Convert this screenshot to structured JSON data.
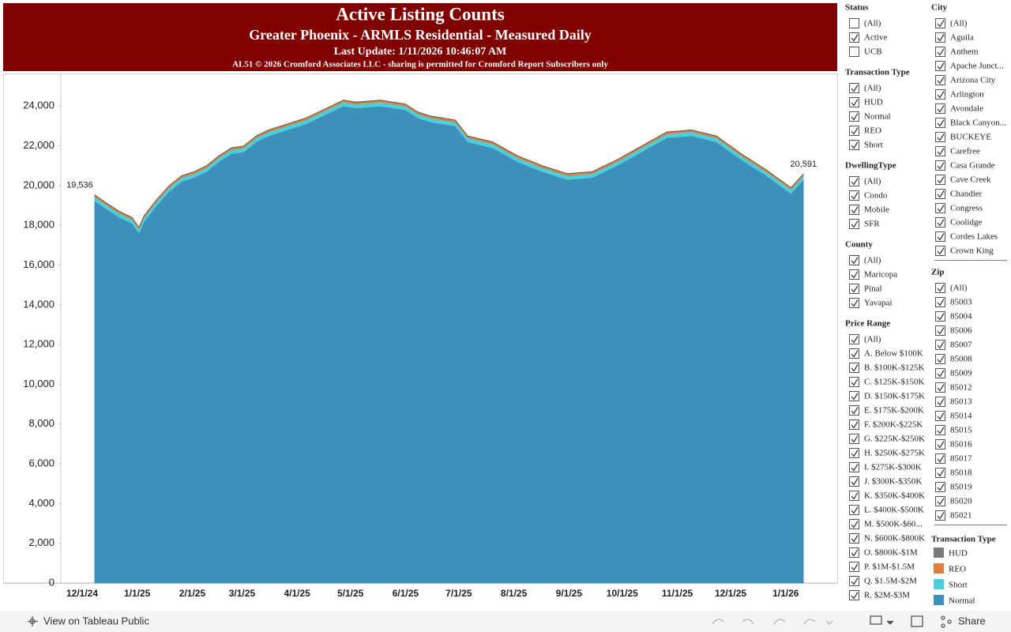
{
  "chart_data": {
    "type": "stacked-area",
    "title": "Active Listing Counts",
    "subtitle": "Greater Phoenix - ARMLS Residential - Measured Daily",
    "update_text": "Last Update: 1/11/2026 10:46:07 AM",
    "footnote": "AL51 © 2026 Cromford Associates LLC - sharing is permitted for Cromford Report Subscribers only",
    "x": [
      "12/8/24",
      "12/15/24",
      "12/22/24",
      "12/29/24",
      "1/2/25",
      "1/5/25",
      "1/12/25",
      "1/19/25",
      "1/26/25",
      "2/2/25",
      "2/9/25",
      "2/16/25",
      "2/23/25",
      "3/2/25",
      "3/9/25",
      "3/16/25",
      "3/23/25",
      "3/30/25",
      "4/6/25",
      "4/13/25",
      "4/20/25",
      "4/27/25",
      "5/4/25",
      "5/18/25",
      "6/1/25",
      "6/8/25",
      "6/15/25",
      "6/29/25",
      "7/6/25",
      "7/20/25",
      "8/3/25",
      "8/17/25",
      "8/31/25",
      "9/14/25",
      "9/28/25",
      "10/12/25",
      "10/26/25",
      "11/9/25",
      "11/23/25",
      "12/7/25",
      "12/21/25",
      "1/4/26",
      "1/11/26"
    ],
    "series": [
      {
        "name": "Normal",
        "color": "#3f8fbd",
        "values": [
          19231,
          18795,
          18395,
          18095,
          17595,
          18195,
          18995,
          19695,
          20195,
          20395,
          20695,
          21195,
          21595,
          21695,
          22195,
          22495,
          22695,
          22895,
          23095,
          23395,
          23695,
          23995,
          23895,
          23995,
          23795,
          23395,
          23195,
          22995,
          22195,
          21895,
          21195,
          20695,
          20295,
          20395,
          20995,
          21695,
          22395,
          22495,
          22195,
          21295,
          20495,
          19595,
          20286
        ]
      },
      {
        "name": "Short",
        "color": "#4ccfdc",
        "values": [
          200,
          200,
          200,
          200,
          200,
          200,
          200,
          200,
          200,
          200,
          200,
          200,
          200,
          200,
          200,
          200,
          200,
          200,
          200,
          200,
          200,
          200,
          200,
          200,
          200,
          200,
          200,
          200,
          200,
          200,
          200,
          200,
          200,
          200,
          200,
          200,
          200,
          200,
          200,
          200,
          200,
          200,
          200
        ]
      },
      {
        "name": "REO",
        "color": "#de7e3c",
        "values": [
          90,
          90,
          90,
          90,
          90,
          90,
          90,
          90,
          90,
          90,
          90,
          90,
          90,
          90,
          90,
          90,
          90,
          90,
          90,
          90,
          90,
          90,
          90,
          90,
          90,
          90,
          90,
          90,
          90,
          90,
          90,
          90,
          90,
          90,
          90,
          90,
          90,
          90,
          90,
          90,
          90,
          90,
          90
        ]
      },
      {
        "name": "HUD",
        "color": "#7a7a7a",
        "values": [
          15,
          15,
          15,
          15,
          15,
          15,
          15,
          15,
          15,
          15,
          15,
          15,
          15,
          15,
          15,
          15,
          15,
          15,
          15,
          15,
          15,
          15,
          15,
          15,
          15,
          15,
          15,
          15,
          15,
          15,
          15,
          15,
          15,
          15,
          15,
          15,
          15,
          15,
          15,
          15,
          15,
          15,
          15
        ]
      }
    ],
    "annotations": [
      {
        "label": "19,536",
        "value": 19536,
        "x": "12/8/24"
      },
      {
        "label": "20,591",
        "value": 20591,
        "x": "1/11/26"
      }
    ],
    "xlim": [
      "11/19/24",
      "1/30/26"
    ],
    "xticks": [
      "12/1/24",
      "1/1/25",
      "2/1/25",
      "3/1/25",
      "4/1/25",
      "5/1/25",
      "6/1/25",
      "7/1/25",
      "8/1/25",
      "9/1/25",
      "10/1/25",
      "11/1/25",
      "12/1/25",
      "1/1/26"
    ],
    "ylim": [
      0,
      25600
    ],
    "yticks": [
      0,
      {
        "value": 2000,
        "label": "2,000"
      },
      {
        "value": 4000,
        "label": "4,000"
      },
      {
        "value": 6000,
        "label": "6,000"
      },
      {
        "value": 8000,
        "label": "8,000"
      },
      {
        "value": 10000,
        "label": "10,000"
      },
      {
        "value": 12000,
        "label": "12,000"
      },
      {
        "value": 14000,
        "label": "14,000"
      },
      {
        "value": 16000,
        "label": "16,000"
      },
      {
        "value": 18000,
        "label": "18,000"
      },
      {
        "value": 20000,
        "label": "20,000"
      },
      {
        "value": 22000,
        "label": "22,000"
      },
      {
        "value": 24000,
        "label": "24,000"
      }
    ],
    "grid": false,
    "legend_title": "Transaction Type"
  },
  "filters": [
    {
      "title": "Status",
      "items": [
        "(All)",
        "Active",
        "UCB"
      ],
      "unchecked": [
        0,
        2
      ]
    },
    {
      "title": "Transaction Type",
      "items": [
        "(All)",
        "HUD",
        "Normal",
        "REO",
        "Short"
      ]
    },
    {
      "title": "DwellingType",
      "items": [
        "(All)",
        "Condo",
        "Mobile",
        "SFR"
      ]
    },
    {
      "title": "County",
      "items": [
        "(All)",
        "Maricopa",
        "Pinal",
        "Yavapai"
      ]
    },
    {
      "title": "Price Range",
      "items": [
        "(All)",
        "A. Below $100K",
        "B. $100K-$125K",
        "C. $125K-$150K",
        "D. $150K-$175K",
        "E. $175K-$200K",
        "F. $200K-$225K",
        "G. $225K-$250K",
        "H. $250K-$275K",
        "I. $275K-$300K",
        "J. $300K-$350K",
        "K. $350K-$400K",
        "L. $400K-$500K",
        "M. $500K-$60...",
        "N. $600K-$800K",
        "O. $800K-$1M",
        "P. $1M-$1.5M",
        "Q. $1.5M-$2M",
        "R. $2M-$3M"
      ]
    },
    {
      "title": "City",
      "items": [
        "(All)",
        "Aguila",
        "Anthem",
        "Apache Junct...",
        "Arizona City",
        "Arlington",
        "Avondale",
        "Black Canyon...",
        "BUCKEYE",
        "Carefree",
        "Casa Grande",
        "Cave Creek",
        "Chandler",
        "Congress",
        "Coolidge",
        "Cordes Lakes",
        "Crown King"
      ]
    },
    {
      "title": "Zip",
      "items": [
        "(All)",
        "85003",
        "85004",
        "85006",
        "85007",
        "85008",
        "85009",
        "85012",
        "85013",
        "85014",
        "85015",
        "85016",
        "85017",
        "85018",
        "85019",
        "85020",
        "85021"
      ]
    }
  ],
  "footer": {
    "link": "View on Tableau Public",
    "share": "Share"
  }
}
